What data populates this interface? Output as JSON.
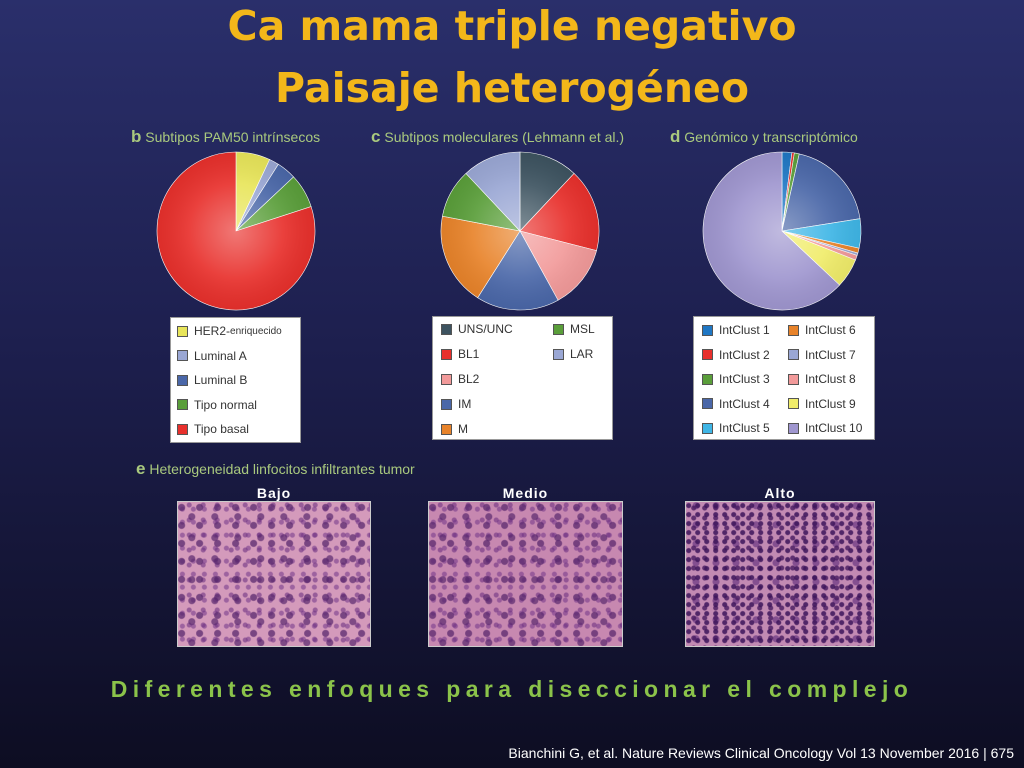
{
  "title_line1": "Ca mama triple negativo",
  "title_line2": "Paisaje heterogéneo",
  "panel_b": {
    "letter": "b",
    "text": "Subtipos PAM50 intrínsecos"
  },
  "panel_c": {
    "letter": "c",
    "text": "Subtipos moleculares (Lehmann et al.)"
  },
  "panel_d": {
    "letter": "d",
    "text": "Genómico y transcriptómico"
  },
  "panel_e": {
    "letter": "e",
    "text": "Heterogeneidad linfocitos infiltrantes tumor"
  },
  "histology_labels": [
    "Bajo",
    "Medio",
    "Alto"
  ],
  "tagline": "Diferentes enfoques para diseccionar el complejo",
  "citation": "Bianchini G, et al. Nature Reviews  Clinical Oncology Vol 13  November 2016 | 675",
  "chart_data": [
    {
      "type": "pie",
      "title": "",
      "categories": [
        "HER2-enriquecido",
        "Luminal A",
        "Luminal B",
        "Tipo normal",
        "Tipo basal"
      ],
      "values": [
        7,
        2,
        4,
        7,
        80
      ],
      "colors": [
        "#e8e55a",
        "#9aa7d4",
        "#4a67a8",
        "#5a9e3a",
        "#e8302c"
      ],
      "legend": [
        {
          "main": "HER2-",
          "sub": "enriquecido"
        },
        {
          "main": "Luminal A"
        },
        {
          "main": "Luminal B"
        },
        {
          "main": "Tipo normal"
        },
        {
          "main": "Tipo basal"
        }
      ]
    },
    {
      "type": "pie",
      "title": "",
      "categories": [
        "UNS/UNC",
        "BL1",
        "BL2",
        "IM",
        "M",
        "MSL",
        "LAR"
      ],
      "values": [
        12,
        17,
        13,
        17,
        19,
        10,
        12
      ],
      "colors": [
        "#3d5360",
        "#e8302c",
        "#f29a9a",
        "#4a67a8",
        "#e8832a",
        "#5a9e3a",
        "#9aa7d4"
      ],
      "legend": [
        {
          "main": "UNS/UNC"
        },
        {
          "main": "BL1"
        },
        {
          "main": "BL2"
        },
        {
          "main": "IM"
        },
        {
          "main": "M"
        },
        {
          "main": "MSL"
        },
        {
          "main": "LAR"
        }
      ]
    },
    {
      "type": "pie",
      "title": "",
      "categories": [
        "IntClust 1",
        "IntClust 2",
        "IntClust 3",
        "IntClust 4",
        "IntClust 5",
        "IntClust 6",
        "IntClust 7",
        "IntClust 8",
        "IntClust 9",
        "IntClust 10"
      ],
      "values": [
        2,
        0.5,
        1,
        19,
        6,
        1,
        0.5,
        1,
        6,
        63
      ],
      "colors": [
        "#1f77c4",
        "#e8302c",
        "#5a9e3a",
        "#4a67a8",
        "#3fb6e6",
        "#e8832a",
        "#9aa7d4",
        "#f29a9a",
        "#f0ec6a",
        "#9f96cf"
      ],
      "legend": [
        {
          "main": "IntClust 1"
        },
        {
          "main": "IntClust 2"
        },
        {
          "main": "IntClust 3"
        },
        {
          "main": "IntClust 4"
        },
        {
          "main": "IntClust 5"
        },
        {
          "main": "IntClust 6"
        },
        {
          "main": "IntClust 7"
        },
        {
          "main": "IntClust 8"
        },
        {
          "main": "IntClust 9"
        },
        {
          "main": "IntClust 10"
        }
      ]
    }
  ]
}
